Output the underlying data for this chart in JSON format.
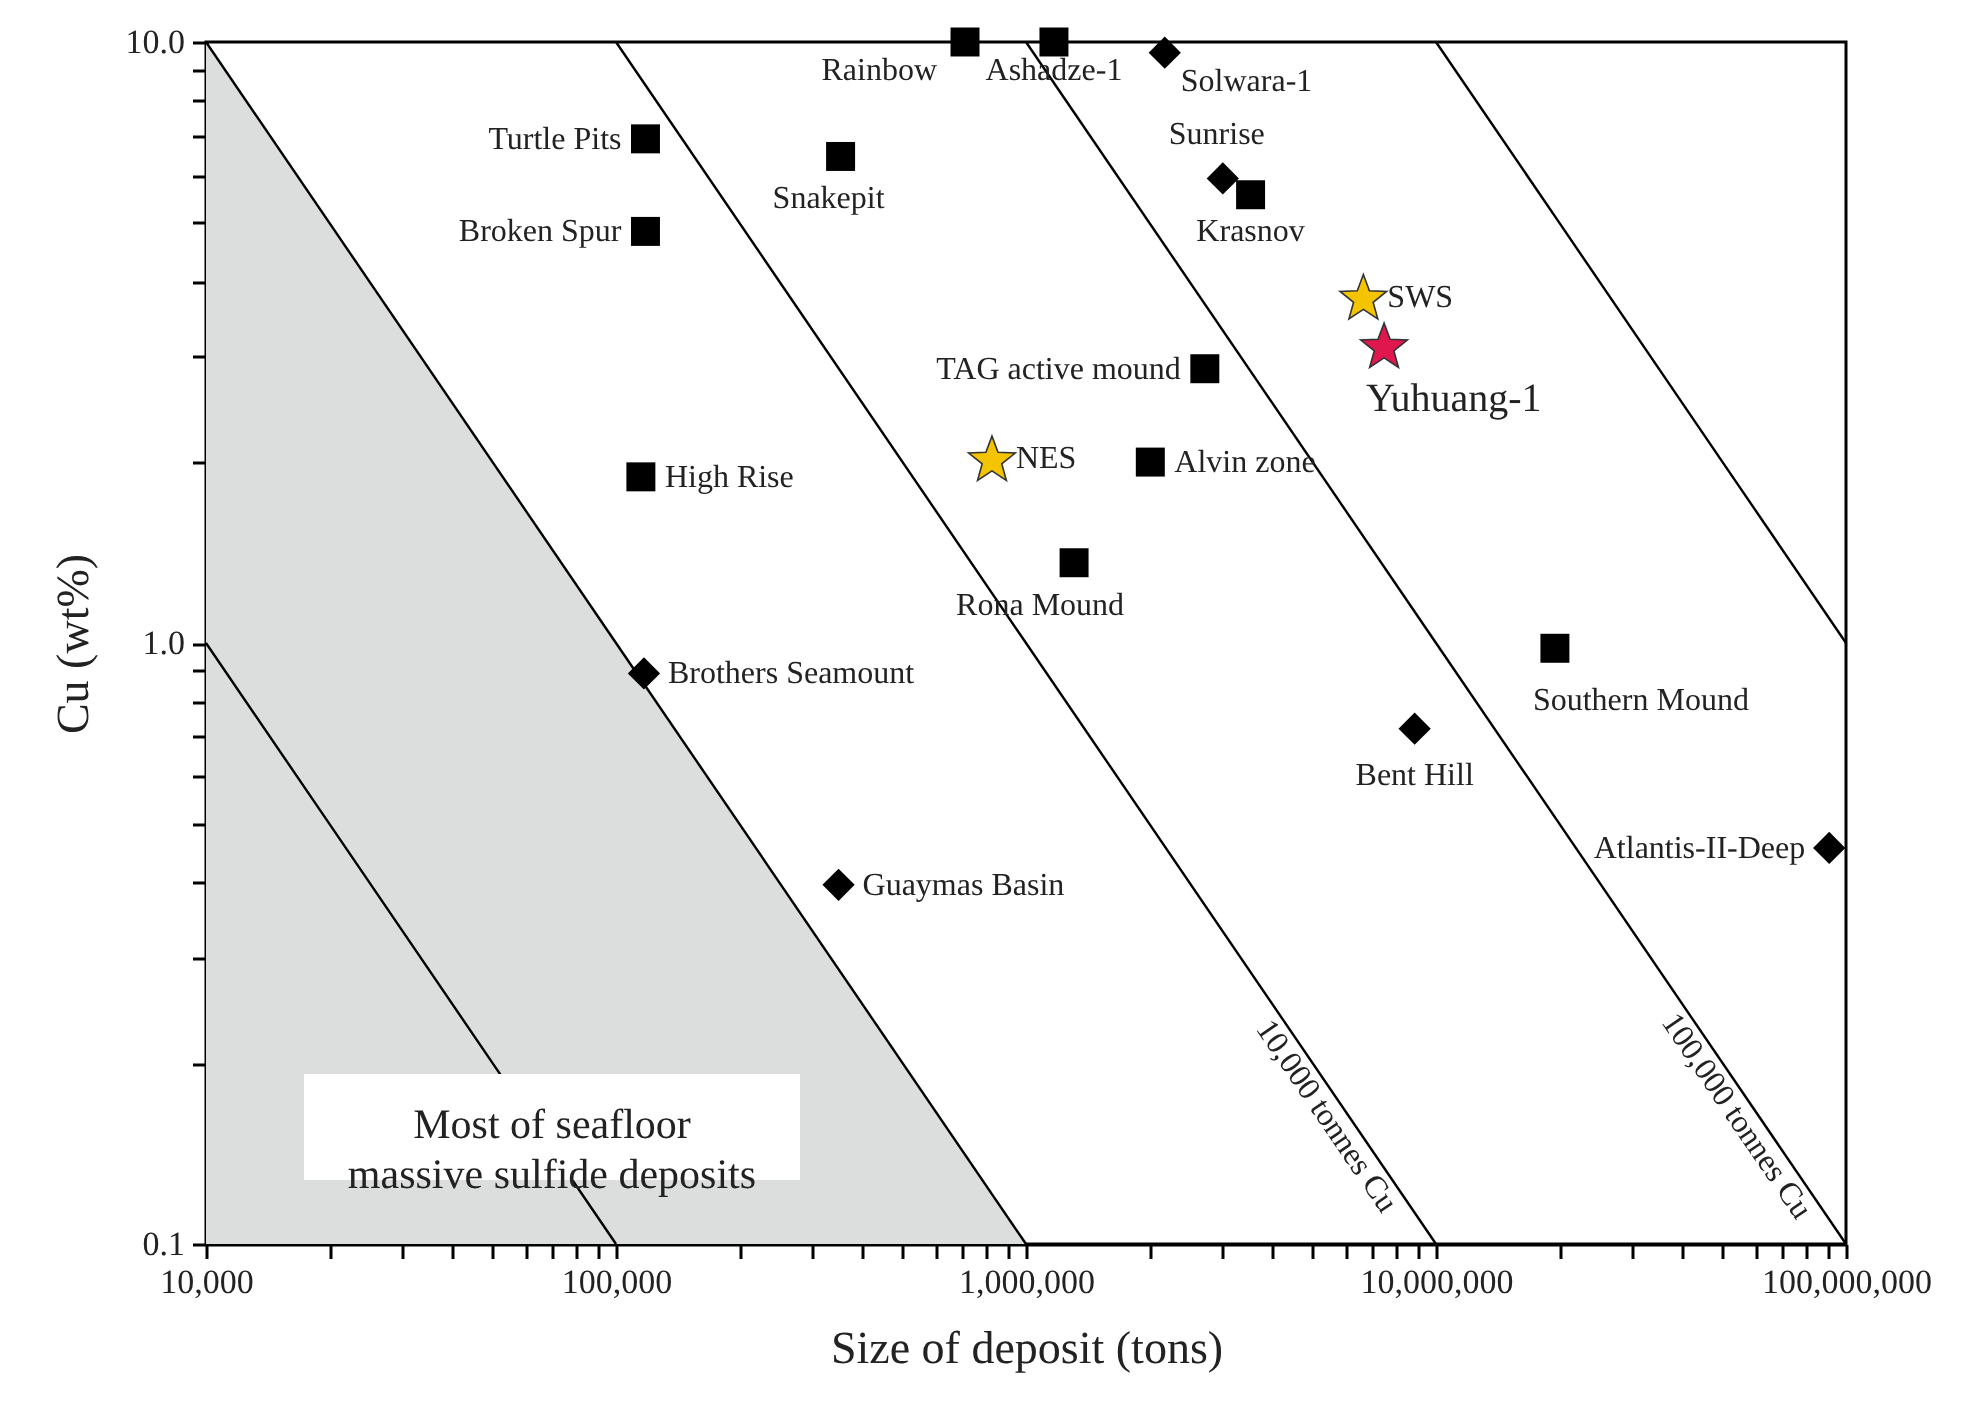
{
  "chart_data": {
    "type": "scatter",
    "xlabel": "Size of deposit (tons)",
    "ylabel": "Cu (wt%)",
    "log": "xy",
    "xlim": [
      10000,
      100000000
    ],
    "ylim": [
      0.1,
      10
    ],
    "xticks": [
      {
        "value": 10000,
        "label": "10,000"
      },
      {
        "value": 20000,
        "label": null
      },
      {
        "value": 30000,
        "label": null
      },
      {
        "value": 40000,
        "label": null
      },
      {
        "value": 50000,
        "label": null
      },
      {
        "value": 60000,
        "label": null
      },
      {
        "value": 70000,
        "label": null
      },
      {
        "value": 80000,
        "label": null
      },
      {
        "value": 90000,
        "label": null
      },
      {
        "value": 100000,
        "label": "100,000"
      },
      {
        "value": 200000,
        "label": null
      },
      {
        "value": 300000,
        "label": null
      },
      {
        "value": 400000,
        "label": null
      },
      {
        "value": 500000,
        "label": null
      },
      {
        "value": 600000,
        "label": null
      },
      {
        "value": 700000,
        "label": null
      },
      {
        "value": 800000,
        "label": null
      },
      {
        "value": 900000,
        "label": null
      },
      {
        "value": 1000000,
        "label": "1,000,000"
      },
      {
        "value": 2000000,
        "label": null
      },
      {
        "value": 3000000,
        "label": null
      },
      {
        "value": 4000000,
        "label": null
      },
      {
        "value": 5000000,
        "label": null
      },
      {
        "value": 6000000,
        "label": null
      },
      {
        "value": 7000000,
        "label": null
      },
      {
        "value": 8000000,
        "label": null
      },
      {
        "value": 9000000,
        "label": null
      },
      {
        "value": 10000000,
        "label": "10,000,000"
      },
      {
        "value": 20000000,
        "label": null
      },
      {
        "value": 30000000,
        "label": null
      },
      {
        "value": 40000000,
        "label": null
      },
      {
        "value": 50000000,
        "label": null
      },
      {
        "value": 60000000,
        "label": null
      },
      {
        "value": 70000000,
        "label": null
      },
      {
        "value": 80000000,
        "label": null
      },
      {
        "value": 90000000,
        "label": null
      },
      {
        "value": 100000000,
        "label": "100,000,000"
      }
    ],
    "yticks": [
      0.1,
      {
        "value": 0.2,
        "label": null
      },
      {
        "value": 0.3,
        "label": null
      },
      {
        "value": 0.4,
        "label": null
      },
      {
        "value": 0.5,
        "label": null
      },
      {
        "value": 0.6,
        "label": null
      },
      {
        "value": 0.7,
        "label": null
      },
      {
        "value": 0.8,
        "label": null
      },
      {
        "value": 0.9,
        "label": null
      },
      {
        "value": 1,
        "label": "1.0"
      },
      {
        "value": 2,
        "label": null
      },
      {
        "value": 3,
        "label": null
      },
      {
        "value": 4,
        "label": null
      },
      {
        "value": 5,
        "label": null
      },
      {
        "value": 6,
        "label": null
      },
      {
        "value": 7,
        "label": null
      },
      {
        "value": 8,
        "label": null
      },
      {
        "value": 9,
        "label": null
      },
      {
        "value": 10,
        "label": "10.0"
      }
    ],
    "annotations": [
      "Most of seafloor\nmassive sulfide deposits"
    ],
    "series": [
      {
        "type": "area",
        "color": "#dcdedd",
        "x": [
          10000,
          100000,
          1000000
        ],
        "values": [
          10,
          1,
          0.1
        ]
      },
      {
        "type": "line",
        "color": "#000000",
        "x": [
          10000,
          20000,
          50000,
          100000
        ],
        "values": [
          1,
          0.5,
          0.2,
          0.1
        ]
      },
      {
        "type": "line",
        "name": "10,000 tonnes Cu",
        "color": "#000000",
        "x": [
          100000,
          1000000,
          10000000
        ],
        "values": [
          10,
          1,
          0.1
        ]
      },
      {
        "type": "line",
        "name": "100,000 tonnes Cu",
        "color": "#000000",
        "x": [
          1000000,
          10000000,
          100000000
        ],
        "values": [
          10,
          1,
          0.1
        ]
      },
      {
        "type": "line",
        "color": "#000000",
        "x": [
          10000000,
          20000000,
          50000000,
          100000000
        ],
        "values": [
          10,
          5,
          2,
          1
        ]
      },
      {
        "name": "Rainbow",
        "color": "#000000",
        "marker": "square",
        "x": [
          710000
        ],
        "values": [
          10
        ]
      },
      {
        "name": "Ashadze-1",
        "color": "#000000",
        "marker": "square",
        "x": [
          1170000
        ],
        "values": [
          10
        ]
      },
      {
        "name": "Solwara-1",
        "color": "#000000",
        "marker": "diamond",
        "x": [
          2180000
        ],
        "values": [
          9.6
        ]
      },
      {
        "name": "Turtle Pits",
        "color": "#000000",
        "marker": "square",
        "x": [
          118000
        ],
        "values": [
          6.9
        ]
      },
      {
        "name": "Snakepit",
        "color": "#000000",
        "marker": "square",
        "x": [
          353000
        ],
        "values": [
          6.45
        ]
      },
      {
        "name": "Broken Spur",
        "color": "#000000",
        "marker": "square",
        "x": [
          118000
        ],
        "values": [
          4.84
        ]
      },
      {
        "name": "Sunrise",
        "color": "#000000",
        "marker": "diamond",
        "x": [
          3020000
        ],
        "values": [
          5.93
        ]
      },
      {
        "name": "Krasnov",
        "color": "#000000",
        "marker": "square",
        "x": [
          3530000
        ],
        "values": [
          5.57
        ]
      },
      {
        "name": "SWS",
        "color": "#f5c400",
        "marker": "star",
        "x": [
          6650000
        ],
        "values": [
          3.77
        ]
      },
      {
        "name": "Yuhuang-1",
        "color": "#e0174f",
        "marker": "star",
        "x": [
          7470000
        ],
        "values": [
          3.13
        ]
      },
      {
        "name": "TAG active mound",
        "color": "#000000",
        "marker": "square",
        "x": [
          2730000
        ],
        "values": [
          2.86
        ]
      },
      {
        "name": "NES",
        "color": "#f5c400",
        "marker": "star",
        "x": [
          826000
        ],
        "values": [
          2.03
        ]
      },
      {
        "name": "Alvin zone",
        "color": "#000000",
        "marker": "square",
        "x": [
          2010000
        ],
        "values": [
          2.0
        ]
      },
      {
        "name": "High Rise",
        "color": "#000000",
        "marker": "square",
        "x": [
          115000
        ],
        "values": [
          1.89
        ]
      },
      {
        "name": "Rona Mound",
        "color": "#000000",
        "marker": "square",
        "x": [
          1310000
        ],
        "values": [
          1.36
        ]
      },
      {
        "name": "Southern Mound",
        "color": "#000000",
        "marker": "square",
        "x": [
          19500000
        ],
        "values": [
          0.98
        ]
      },
      {
        "name": "Brothers Seamount",
        "color": "#000000",
        "marker": "diamond",
        "x": [
          117000
        ],
        "values": [
          0.89
        ]
      },
      {
        "name": "Bent Hill",
        "color": "#000000",
        "marker": "diamond",
        "x": [
          8870000
        ],
        "values": [
          0.72
        ]
      },
      {
        "name": "Atlantis-II-Deep",
        "color": "#000000",
        "marker": "diamond",
        "x": [
          91000000
        ],
        "values": [
          0.456
        ]
      },
      {
        "name": "Guaymas Basin",
        "color": "#000000",
        "marker": "diamond",
        "x": [
          349000
        ],
        "values": [
          0.396
        ]
      }
    ]
  }
}
